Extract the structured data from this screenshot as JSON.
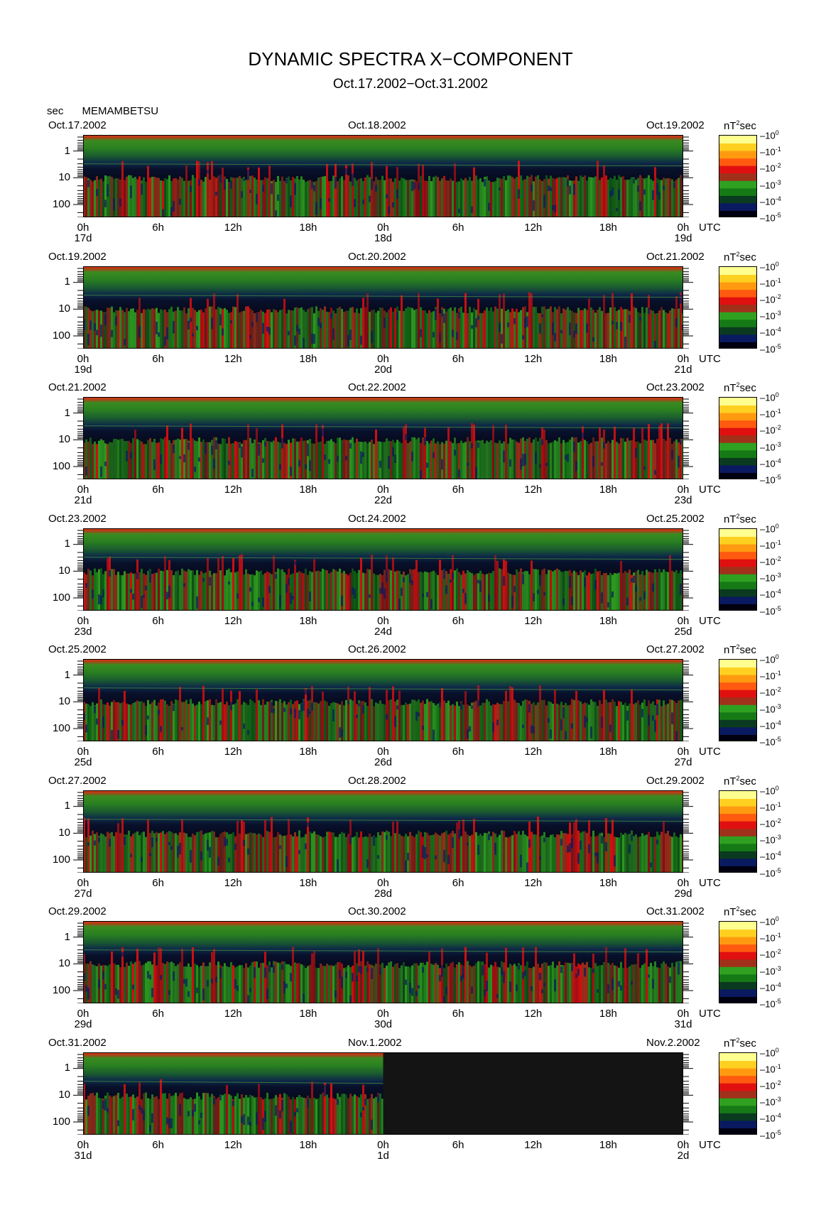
{
  "title": "DYNAMIC SPECTRA X−COMPONENT",
  "subtitle": "Oct.17.2002−Oct.31.2002",
  "station": {
    "unit_label": "sec",
    "name": "MEMAMBETSU"
  },
  "colorbar": {
    "unit": "nT",
    "unit_exp": "2",
    "unit_suffix": "sec",
    "levels": [
      {
        "base": "10",
        "exp": "0"
      },
      {
        "base": "10",
        "exp": "-1"
      },
      {
        "base": "10",
        "exp": "-2"
      },
      {
        "base": "10",
        "exp": "-3"
      },
      {
        "base": "10",
        "exp": "-4"
      },
      {
        "base": "10",
        "exp": "-5"
      }
    ]
  },
  "axes": {
    "y_ticks": [
      "1",
      "10",
      "100"
    ],
    "x_ticks": [
      "0h",
      "6h",
      "12h",
      "18h",
      "0h",
      "6h",
      "12h",
      "18h",
      "0h"
    ],
    "x_unit": "UTC"
  },
  "panels": [
    {
      "date_left": "Oct.17.2002",
      "date_mid": "Oct.18.2002",
      "date_right": "Oct.19.2002",
      "day_left": "17d",
      "day_mid": "18d",
      "day_right": "19d"
    },
    {
      "date_left": "Oct.19.2002",
      "date_mid": "Oct.20.2002",
      "date_right": "Oct.21.2002",
      "day_left": "19d",
      "day_mid": "20d",
      "day_right": "21d"
    },
    {
      "date_left": "Oct.21.2002",
      "date_mid": "Oct.22.2002",
      "date_right": "Oct.23.2002",
      "day_left": "21d",
      "day_mid": "22d",
      "day_right": "23d"
    },
    {
      "date_left": "Oct.23.2002",
      "date_mid": "Oct.24.2002",
      "date_right": "Oct.25.2002",
      "day_left": "23d",
      "day_mid": "24d",
      "day_right": "25d"
    },
    {
      "date_left": "Oct.25.2002",
      "date_mid": "Oct.26.2002",
      "date_right": "Oct.27.2002",
      "day_left": "25d",
      "day_mid": "26d",
      "day_right": "27d"
    },
    {
      "date_left": "Oct.27.2002",
      "date_mid": "Oct.28.2002",
      "date_right": "Oct.29.2002",
      "day_left": "27d",
      "day_mid": "28d",
      "day_right": "29d"
    },
    {
      "date_left": "Oct.29.2002",
      "date_mid": "Oct.30.2002",
      "date_right": "Oct.31.2002",
      "day_left": "29d",
      "day_mid": "30d",
      "day_right": "31d"
    },
    {
      "date_left": "Oct.31.2002",
      "date_mid": "Nov.1.2002",
      "date_right": "Nov.2.2002",
      "day_left": "31d",
      "day_mid": "1d",
      "day_right": "2d",
      "data_ends_fraction": 0.5
    }
  ],
  "chart_data": {
    "type": "heatmap",
    "title": "DYNAMIC SPECTRA X−COMPONENT",
    "subtitle": "Oct.17.2002−Oct.31.2002",
    "ylabel": "sec",
    "y_scale": "log",
    "y_reversed": true,
    "ylim_seconds": [
      0.25,
      300
    ],
    "xlabel": "UTC",
    "value_unit": "nT^2 sec",
    "value_scale": "log",
    "value_range": [
      1e-05,
      1
    ],
    "colormap": [
      "#000010",
      "#0a1a60",
      "#0a3a20",
      "#157a15",
      "#2fa020",
      "#a0301a",
      "#e01010",
      "#ff5a10",
      "#ff9a10",
      "#ffd020",
      "#ffff90"
    ],
    "grid": false,
    "legend": "colorbar right",
    "station": "MEMAMBETSU",
    "component": "X",
    "panels_days": [
      [
        "Oct.17.2002",
        "Oct.18.2002"
      ],
      [
        "Oct.19.2002",
        "Oct.20.2002"
      ],
      [
        "Oct.21.2002",
        "Oct.22.2002"
      ],
      [
        "Oct.23.2002",
        "Oct.24.2002"
      ],
      [
        "Oct.25.2002",
        "Oct.26.2002"
      ],
      [
        "Oct.27.2002",
        "Oct.28.2002"
      ],
      [
        "Oct.29.2002",
        "Oct.30.2002"
      ],
      [
        "Oct.31.2002",
        "Nov.1.2002"
      ]
    ],
    "no_data": {
      "from": "Nov.1.2002 0h",
      "to": "Nov.2.2002 0h"
    }
  }
}
